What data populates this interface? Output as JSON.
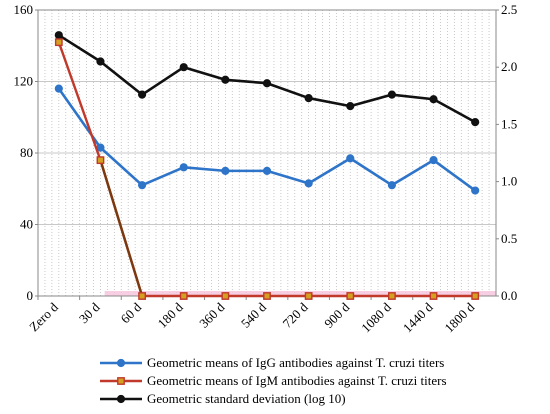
{
  "chart_data": {
    "type": "line",
    "categories": [
      "Zero d",
      "30 d",
      "60 d",
      "180 d",
      "360 d",
      "540 d",
      "720 d",
      "900 d",
      "1080 d",
      "1440 d",
      "1800 d"
    ],
    "y_left": {
      "ticks": [
        "0",
        "40",
        "80",
        "120",
        "160"
      ],
      "ylim": [
        0,
        160
      ]
    },
    "y_right": {
      "ticks": [
        "0.0",
        "0.5",
        "1.0",
        "1.5",
        "2.0",
        "2.5"
      ],
      "ylim": [
        0,
        2.5
      ]
    },
    "grid": true,
    "legend_position": "bottom",
    "series": [
      {
        "name": "Geometric means of IgG antibodies against T. cruzi titers",
        "axis": "left",
        "color": "#2e74c9",
        "marker": "circle",
        "values": [
          116,
          83,
          62,
          72,
          70,
          70,
          63,
          77,
          62,
          76,
          59
        ]
      },
      {
        "name": "Geometric means of IgM antibodies against T. cruzi titers",
        "axis": "left",
        "color": "#c0392b",
        "marker": "square",
        "values": [
          142,
          76,
          0,
          0,
          0,
          0,
          0,
          0,
          0,
          0,
          0
        ]
      },
      {
        "name": "Geometric standard deviation (log 10)",
        "axis": "right",
        "color": "#111111",
        "marker": "circle",
        "values": [
          2.28,
          2.05,
          1.76,
          2.0,
          1.89,
          1.86,
          1.73,
          1.66,
          1.76,
          1.72,
          1.52
        ]
      }
    ]
  }
}
